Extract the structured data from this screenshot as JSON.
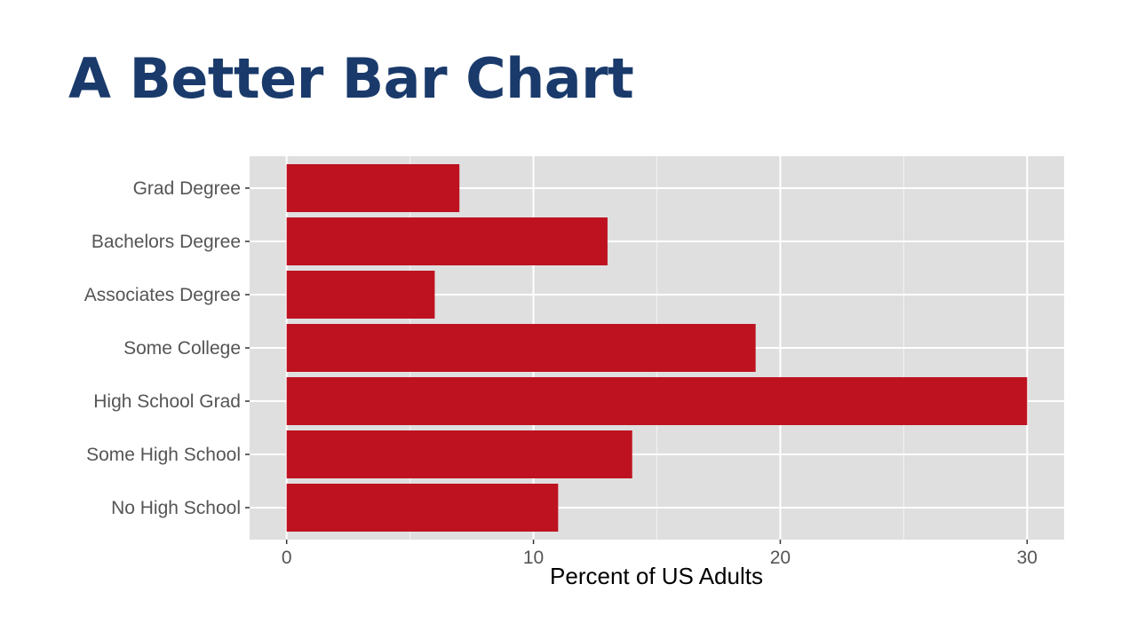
{
  "slide": {
    "title": "A Better Bar Chart",
    "title_color": "#1a3a6b"
  },
  "chart_data": {
    "type": "bar",
    "orientation": "horizontal",
    "categories": [
      "No High School",
      "Some High School",
      "High School Grad",
      "Some College",
      "Associates Degree",
      "Bachelors Degree",
      "Grad Degree"
    ],
    "values": [
      11,
      14,
      30,
      19,
      6,
      13,
      7
    ],
    "xlabel": "Percent of US Adults",
    "ylabel": "",
    "xlim": [
      -1.5,
      31.5
    ],
    "xticks": [
      0,
      10,
      20,
      30
    ],
    "grid": true,
    "bar_color": "#be1220",
    "panel_color": "#dfdfdf",
    "grid_color": "#ffffff"
  }
}
